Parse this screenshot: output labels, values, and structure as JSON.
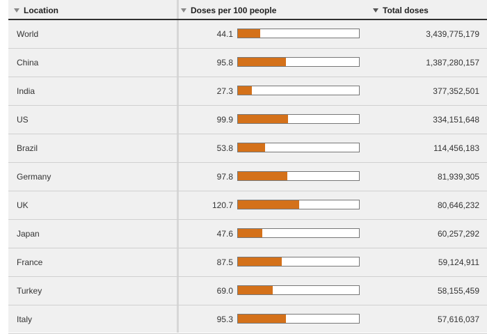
{
  "headers": {
    "location": "Location",
    "doses_per_100": "Doses per 100 people",
    "total_doses": "Total doses"
  },
  "colors": {
    "bar": "#d4711a",
    "header_rule": "#2f2f2f",
    "table_bg": "#f0f0f0"
  },
  "scale_max": 240,
  "rows": [
    {
      "location": "World",
      "rate": "44.1",
      "rate_value": 44.1,
      "total": "3,439,775,179"
    },
    {
      "location": "China",
      "rate": "95.8",
      "rate_value": 95.8,
      "total": "1,387,280,157"
    },
    {
      "location": "India",
      "rate": "27.3",
      "rate_value": 27.3,
      "total": "377,352,501"
    },
    {
      "location": "US",
      "rate": "99.9",
      "rate_value": 99.9,
      "total": "334,151,648"
    },
    {
      "location": "Brazil",
      "rate": "53.8",
      "rate_value": 53.8,
      "total": "114,456,183"
    },
    {
      "location": "Germany",
      "rate": "97.8",
      "rate_value": 97.8,
      "total": "81,939,305"
    },
    {
      "location": "UK",
      "rate": "120.7",
      "rate_value": 120.7,
      "total": "80,646,232"
    },
    {
      "location": "Japan",
      "rate": "47.6",
      "rate_value": 47.6,
      "total": "60,257,292"
    },
    {
      "location": "France",
      "rate": "87.5",
      "rate_value": 87.5,
      "total": "59,124,911"
    },
    {
      "location": "Turkey",
      "rate": "69.0",
      "rate_value": 69.0,
      "total": "58,155,459"
    },
    {
      "location": "Italy",
      "rate": "95.3",
      "rate_value": 95.3,
      "total": "57,616,037"
    }
  ]
}
